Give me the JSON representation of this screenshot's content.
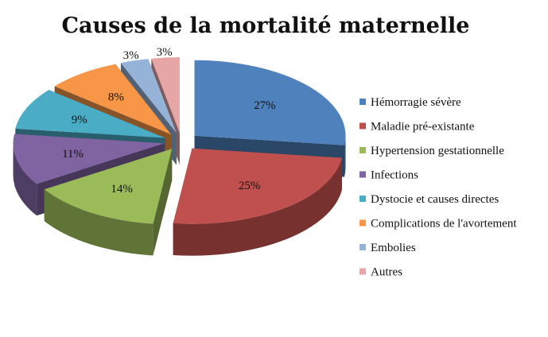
{
  "chart_data": {
    "type": "pie",
    "title": "Causes de la mortalité maternelle",
    "three_d": true,
    "exploded": true,
    "legend_position": "right",
    "slices": [
      {
        "label": "Hémorragie sévère",
        "value": 27,
        "value_label": "27%",
        "color": "#4f81bd"
      },
      {
        "label": "Maladie pré-existante",
        "value": 25,
        "value_label": "25%",
        "color": "#c0504d"
      },
      {
        "label": "Hypertension gestationnelle",
        "value": 14,
        "value_label": "14%",
        "color": "#9bbb59"
      },
      {
        "label": "Infections",
        "value": 11,
        "value_label": "11%",
        "color": "#8064a2"
      },
      {
        "label": "Dystocie et causes directes",
        "value": 9,
        "value_label": "9%",
        "color": "#4bacc6"
      },
      {
        "label": "Complications de l'avortement",
        "value": 8,
        "value_label": "8%",
        "color": "#f79646"
      },
      {
        "label": "Embolies",
        "value": 3,
        "value_label": "3%",
        "color": "#95b3d7"
      },
      {
        "label": "Autres",
        "value": 3,
        "value_label": "3%",
        "color": "#e6a6a5"
      }
    ]
  }
}
